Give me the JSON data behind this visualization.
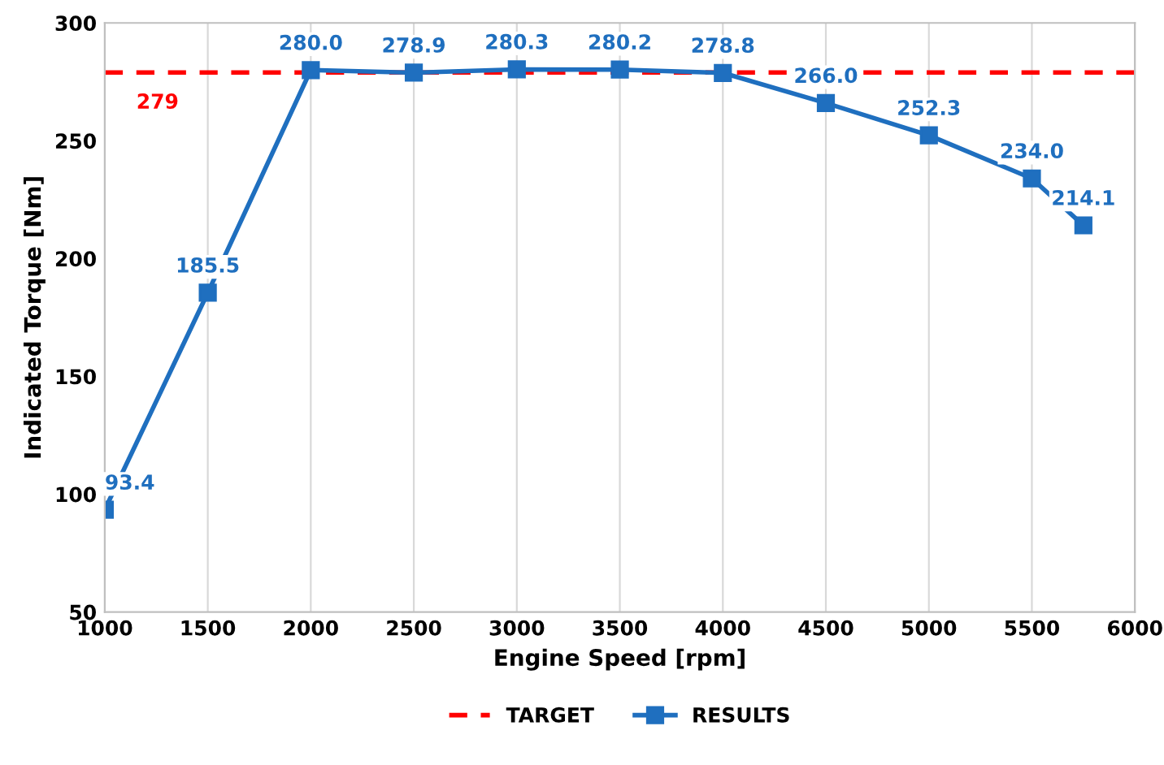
{
  "chart_data": {
    "type": "line",
    "xlabel": "Engine Speed [rpm]",
    "ylabel": "Indicated Torque [Nm]",
    "xlim": [
      1000,
      6000
    ],
    "xticks": [
      1000,
      1500,
      2000,
      2500,
      3000,
      3500,
      4000,
      4500,
      5000,
      5500,
      6000
    ],
    "ylim": [
      50,
      300
    ],
    "yticks": [
      50,
      100,
      150,
      200,
      250,
      300
    ],
    "grid": "x",
    "legend": "bottom",
    "annotations": [
      {
        "text": "279",
        "x": 1000,
        "y": 279
      }
    ],
    "series": [
      {
        "name": "TARGET",
        "color": "#ff0000",
        "line_style": "dashed",
        "marker": "none",
        "x": [
          1000,
          6000
        ],
        "values": [
          279,
          279
        ]
      },
      {
        "name": "RESULTS",
        "color": "#1f6fbf",
        "line_style": "solid",
        "marker": "square",
        "x": [
          1000,
          1500,
          2000,
          2500,
          3000,
          3500,
          4000,
          4500,
          5000,
          5500,
          5750
        ],
        "values": [
          93.4,
          185.5,
          280.0,
          278.9,
          280.3,
          280.2,
          278.8,
          266.0,
          252.3,
          234.0,
          214.1
        ],
        "value_labels": [
          "93.4",
          "185.5",
          "280.0",
          "278.9",
          "280.3",
          "280.2",
          "278.8",
          "266.0",
          "252.3",
          "234.0",
          "214.1"
        ]
      }
    ]
  }
}
